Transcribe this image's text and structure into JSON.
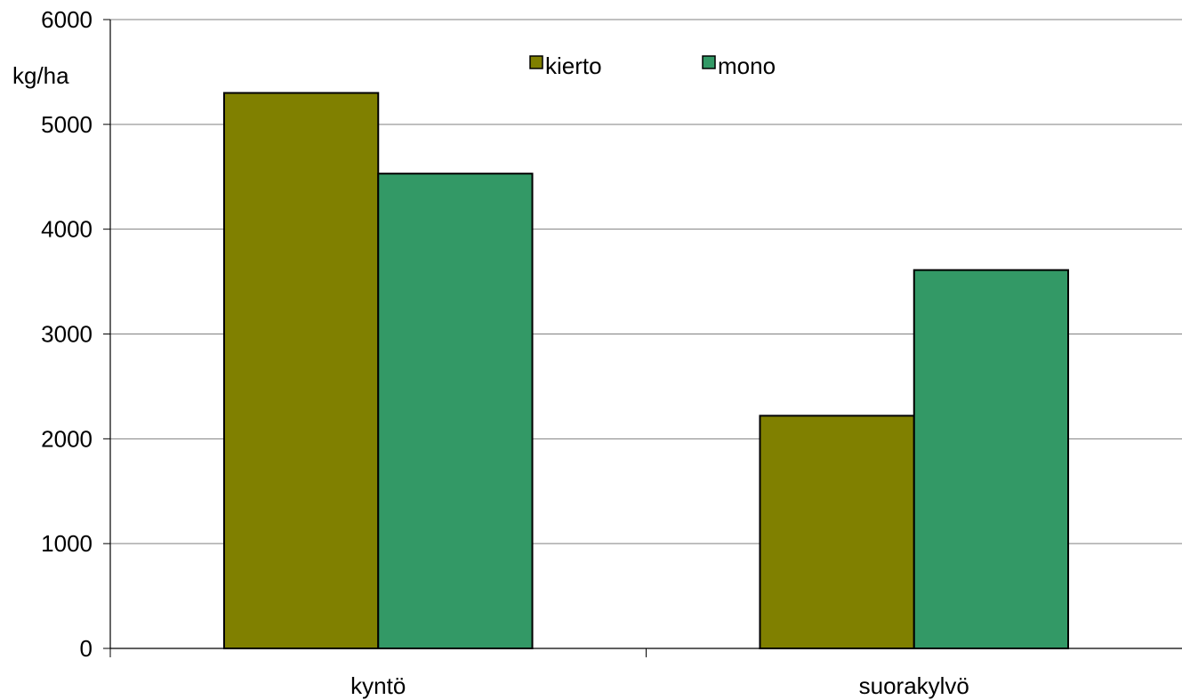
{
  "chart_data": {
    "type": "bar",
    "title": "",
    "xlabel": "",
    "ylabel": "kg/ha",
    "ylim": [
      0,
      6000
    ],
    "yticks": [
      0,
      1000,
      2000,
      3000,
      4000,
      5000,
      6000
    ],
    "grid": true,
    "legend_position": "top-center",
    "categories": [
      "kyntö",
      "suorakylvö"
    ],
    "series": [
      {
        "name": "kierto",
        "color": "#808000",
        "values": [
          5300,
          2220
        ]
      },
      {
        "name": "mono",
        "color": "#339966",
        "values": [
          4530,
          3610
        ]
      }
    ]
  }
}
